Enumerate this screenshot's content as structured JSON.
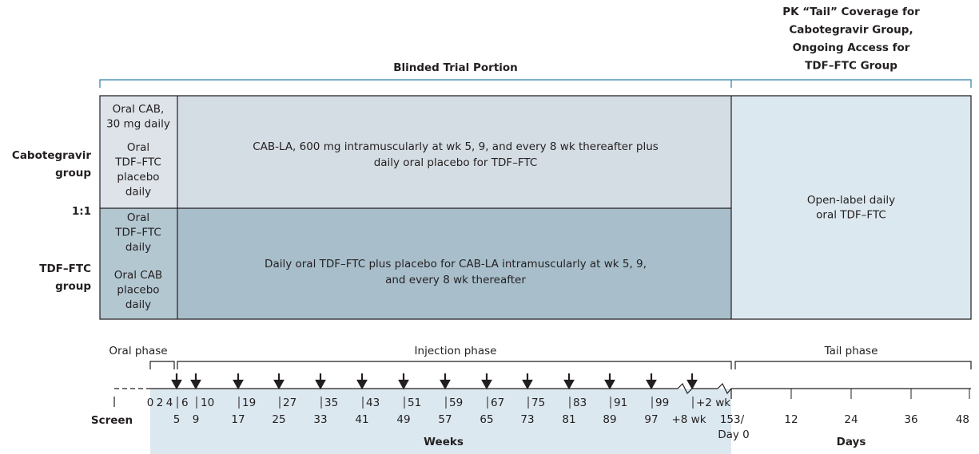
{
  "header": {
    "tail_title": [
      "PK “Tail” Coverage for",
      "Cabotegravir Group,",
      "Ongoing Access for",
      "TDF–FTC Group"
    ],
    "blinded_title": "Blinded Trial Portion"
  },
  "groups": {
    "cab_label": [
      "Cabotegravir",
      "group"
    ],
    "ratio": "1:1",
    "tdf_label": [
      "TDF–FTC",
      "group"
    ]
  },
  "cab_arm": {
    "oral_lead_in": [
      "Oral CAB,",
      "30 mg daily"
    ],
    "oral_placebo": [
      "Oral",
      "TDF–FTC",
      "placebo",
      "daily"
    ],
    "main": [
      "CAB-LA, 600 mg intramuscularly at wk 5, 9, and every 8 wk thereafter plus",
      "daily oral placebo for TDF–FTC"
    ]
  },
  "tdf_arm": {
    "oral_lead_in": [
      "Oral",
      "TDF–FTC",
      "daily"
    ],
    "oral_placebo": [
      "Oral CAB",
      "placebo",
      "daily"
    ],
    "main": [
      "Daily oral TDF–FTC plus placebo for CAB-LA intramuscularly at wk 5, 9,",
      "and every 8 wk thereafter"
    ]
  },
  "tail_box": [
    "Open-label daily",
    "oral TDF–FTC"
  ],
  "phases": {
    "oral": "Oral phase",
    "injection": "Injection phase",
    "tail": "Tail phase"
  },
  "timeline": {
    "screen": "Screen",
    "weeks_top": [
      "0",
      "2",
      "4",
      "6",
      "10",
      "19",
      "27",
      "35",
      "43",
      "51",
      "59",
      "67",
      "75",
      "83",
      "91",
      "99",
      "+2 wk"
    ],
    "weeks_bottom": [
      "5",
      "9",
      "17",
      "25",
      "33",
      "41",
      "49",
      "57",
      "65",
      "73",
      "81",
      "89",
      "97",
      "+8 wk",
      "153/"
    ],
    "day0": "Day 0",
    "days": [
      "12",
      "24",
      "36",
      "48"
    ],
    "weeks_axis": "Weeks",
    "days_axis": "Days"
  }
}
